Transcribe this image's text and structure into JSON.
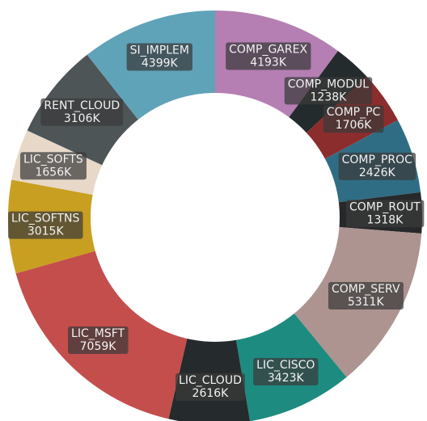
{
  "chart_data": {
    "type": "pie",
    "donut": true,
    "unit_suffix": "K",
    "slices": [
      {
        "label": "COMP_GAREX",
        "value": 4193,
        "value_label": "4193K",
        "color": "#b57fb3"
      },
      {
        "label": "COMP_MODUL",
        "value": 1238,
        "value_label": "1238K",
        "color": "#242b2c"
      },
      {
        "label": "COMP_PC",
        "value": 1706,
        "value_label": "1706K",
        "color": "#8c2d2d"
      },
      {
        "label": "COMP_PROC",
        "value": 2426,
        "value_label": "2426K",
        "color": "#2f6d84"
      },
      {
        "label": "COMP_ROUT",
        "value": 1318,
        "value_label": "1318K",
        "color": "#26282a"
      },
      {
        "label": "COMP_SERV",
        "value": 5311,
        "value_label": "5311K",
        "color": "#ad9490"
      },
      {
        "label": "LIC_CISCO",
        "value": 3423,
        "value_label": "3423K",
        "color": "#1e8b80"
      },
      {
        "label": "LIC_CLOUD",
        "value": 2616,
        "value_label": "2616K",
        "color": "#252b2c"
      },
      {
        "label": "LIC_MSFT",
        "value": 7059,
        "value_label": "7059K",
        "color": "#c44e4c"
      },
      {
        "label": "LIC_SOFTNS",
        "value": 3015,
        "value_label": "3015K",
        "color": "#c99f21"
      },
      {
        "label": "LIC_SOFTS",
        "value": 1656,
        "value_label": "1656K",
        "color": "#e7d8c8"
      },
      {
        "label": "RENT_CLOUD",
        "value": 3106,
        "value_label": "3106K",
        "color": "#4e5557"
      },
      {
        "label": "SI_IMPLEM",
        "value": 4399,
        "value_label": "4399K",
        "color": "#5fa3b9"
      }
    ]
  }
}
